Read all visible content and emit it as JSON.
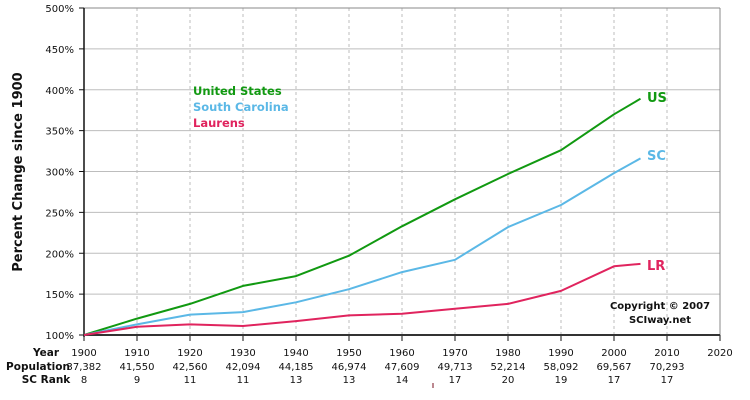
{
  "chart_data": {
    "type": "line",
    "title": "",
    "xlabel": "Year",
    "ylabel": "Percent Change since 1900",
    "ylim": [
      100,
      500
    ],
    "xlim": [
      1900,
      2020
    ],
    "y_ticks": [
      "100%",
      "150%",
      "200%",
      "250%",
      "300%",
      "350%",
      "400%",
      "450%",
      "500%"
    ],
    "y_tick_values": [
      100,
      150,
      200,
      250,
      300,
      350,
      400,
      450,
      500
    ],
    "x_ticks": [
      1900,
      1910,
      1920,
      1930,
      1940,
      1950,
      1960,
      1970,
      1980,
      1990,
      2000,
      2010,
      2020
    ],
    "x": [
      1900,
      1910,
      1920,
      1930,
      1940,
      1950,
      1960,
      1970,
      1980,
      1990,
      2000,
      2005
    ],
    "series": [
      {
        "name": "United States",
        "short": "US",
        "color": "#119911",
        "values": [
          100,
          120,
          138,
          160,
          172,
          197,
          233,
          266,
          297,
          326,
          370,
          389
        ]
      },
      {
        "name": "South Carolina",
        "short": "SC",
        "color": "#5bb8e6",
        "values": [
          100,
          113,
          125,
          128,
          140,
          156,
          177,
          192,
          232,
          259,
          298,
          316
        ]
      },
      {
        "name": "Laurens",
        "short": "LR",
        "color": "#e0245e",
        "values": [
          100,
          110,
          113,
          111,
          117,
          124,
          126,
          132,
          138,
          154,
          184,
          187
        ]
      }
    ],
    "legend_position": "upper-left inside plot",
    "grid": {
      "horizontal": "solid",
      "vertical": "dashed"
    },
    "table": {
      "row_labels": [
        "Year",
        "Population",
        "SC Rank"
      ],
      "years": [
        "1900",
        "1910",
        "1920",
        "1930",
        "1940",
        "1950",
        "1960",
        "1970",
        "1980",
        "1990",
        "2000",
        "2010",
        "2020"
      ],
      "population": [
        "37,382",
        "41,550",
        "42,560",
        "42,094",
        "44,185",
        "46,974",
        "47,609",
        "49,713",
        "52,214",
        "58,092",
        "69,567",
        "70,293",
        ""
      ],
      "sc_rank": [
        "8",
        "9",
        "11",
        "11",
        "13",
        "13",
        "14",
        "17",
        "20",
        "19",
        "17",
        "17",
        ""
      ]
    },
    "annotations": [
      "Copyright © 2007",
      "SCIway.net"
    ]
  },
  "legend": {
    "items": [
      "United States",
      "South Carolina",
      "Laurens"
    ]
  },
  "end_labels": [
    "US",
    "SC",
    "LR"
  ],
  "copyright": {
    "line1": "Copyright © 2007",
    "line2": "SCIway.net"
  },
  "axis": {
    "ylabel": "Percent Change since 1900"
  }
}
